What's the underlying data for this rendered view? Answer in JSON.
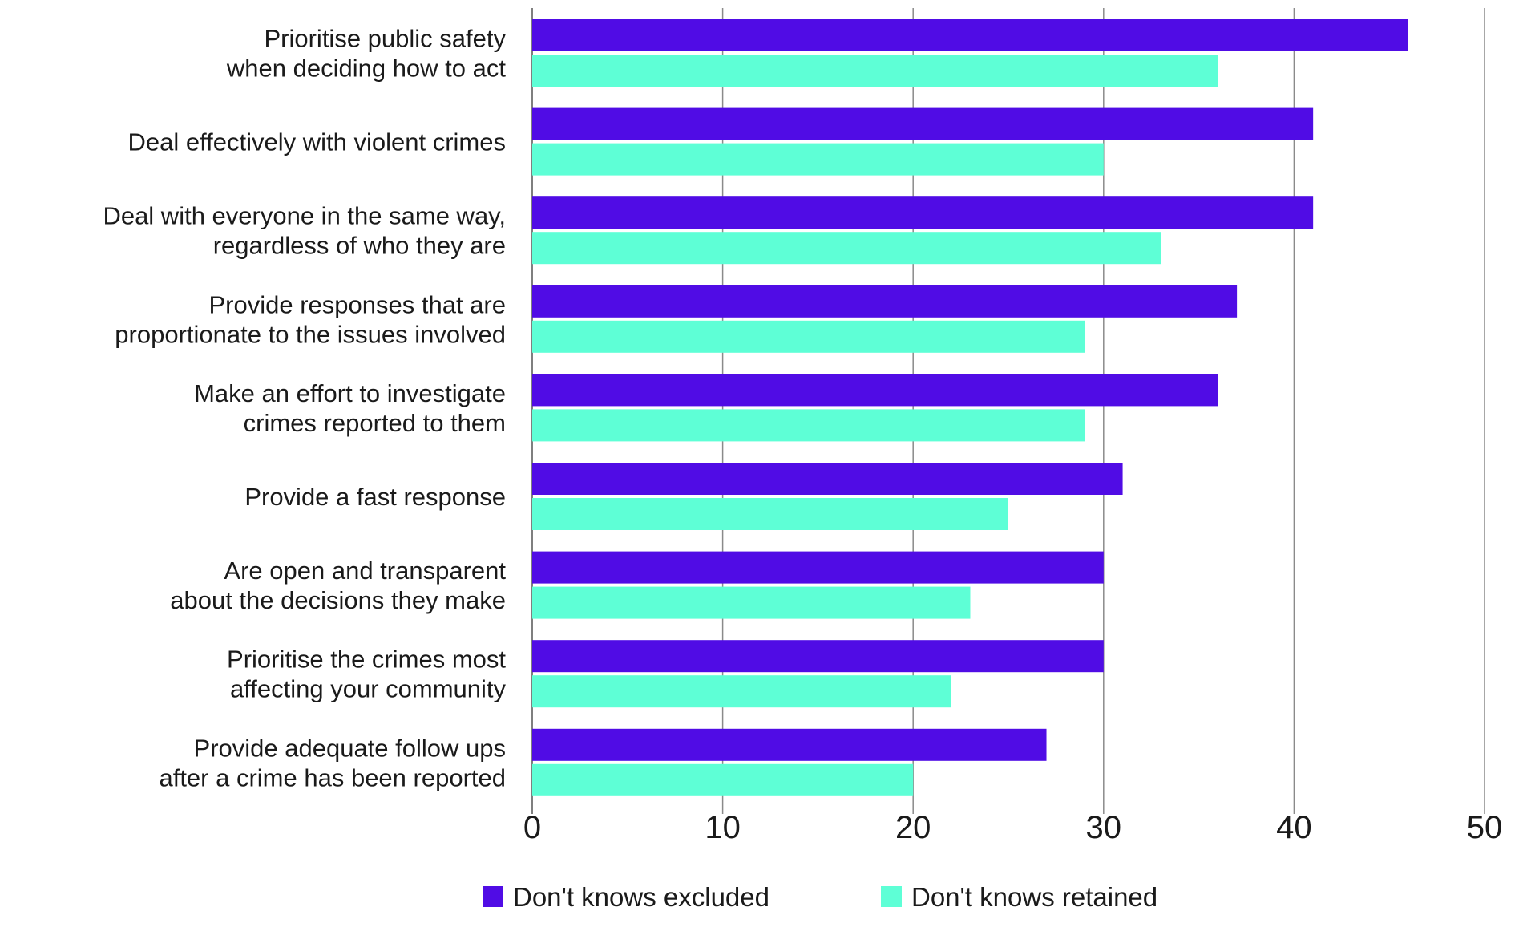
{
  "chart_data": {
    "type": "bar",
    "orientation": "horizontal",
    "categories": [
      [
        "Prioritise public safety",
        "when deciding how to act"
      ],
      [
        "Deal effectively with violent crimes"
      ],
      [
        "Deal with everyone in the same way,",
        "regardless of who they are"
      ],
      [
        "Provide responses that are",
        "proportionate to the issues involved"
      ],
      [
        "Make an effort to investigate",
        "crimes reported to them"
      ],
      [
        "Provide a fast response"
      ],
      [
        "Are open and transparent",
        "about the decisions they make"
      ],
      [
        "Prioritise the crimes most",
        "affecting your community"
      ],
      [
        "Provide adequate follow ups",
        "after a crime has been reported"
      ]
    ],
    "series": [
      {
        "name": "Don't knows excluded",
        "color": "#500CE5",
        "values": [
          46,
          41,
          41,
          37,
          36,
          31,
          30,
          30,
          27
        ]
      },
      {
        "name": "Don't knows retained",
        "color": "#5EFFD6",
        "values": [
          36,
          30,
          33,
          29,
          29,
          25,
          23,
          22,
          20
        ]
      }
    ],
    "xlim": [
      0,
      50
    ],
    "xticks": [
      "0",
      "10",
      "20",
      "30",
      "40",
      "50"
    ],
    "grid": "vertical",
    "legend": "bottom",
    "title": "",
    "xlabel": "",
    "ylabel": ""
  }
}
